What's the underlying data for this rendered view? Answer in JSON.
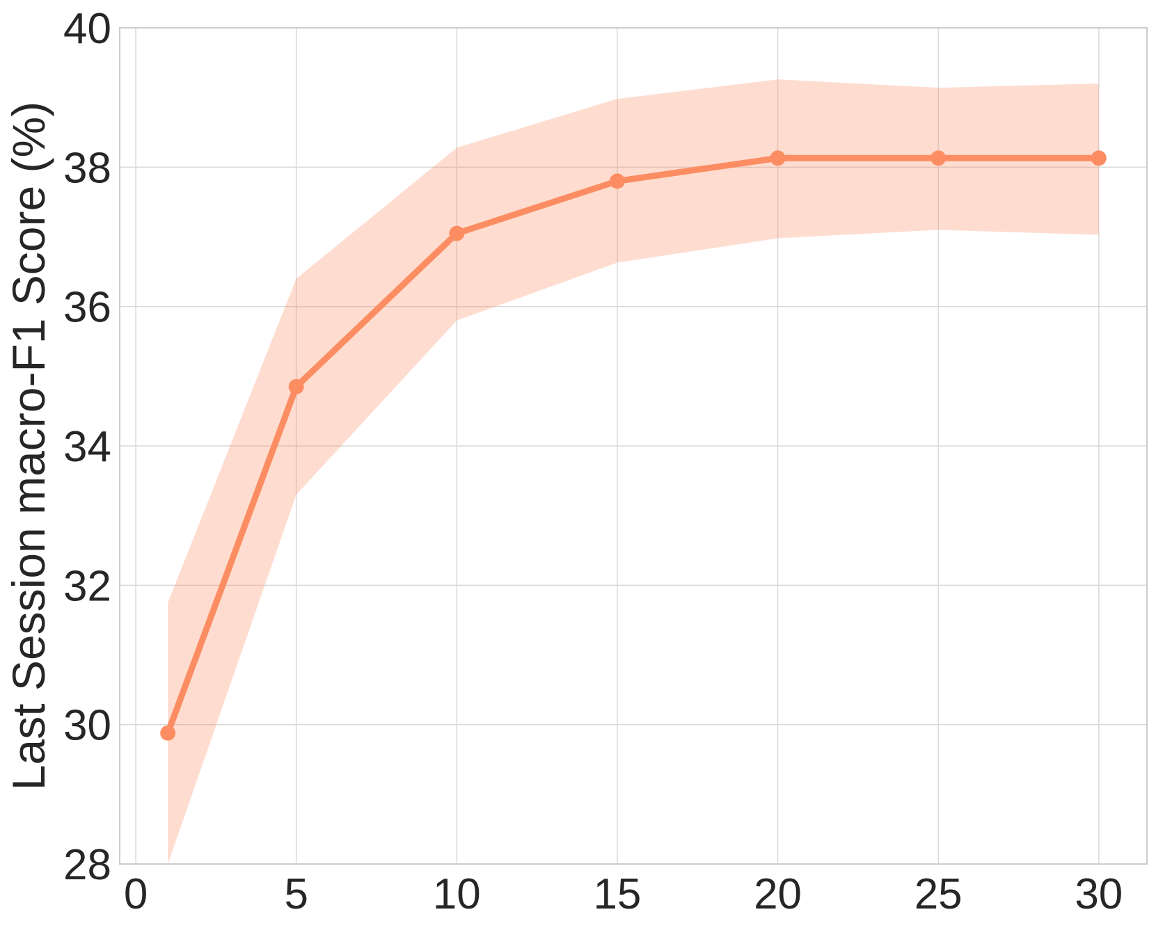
{
  "chart_data": {
    "type": "line",
    "title": "",
    "xlabel": "",
    "ylabel": "Last Session macro-F1 Score (%)",
    "xlim": [
      -0.5,
      31.5
    ],
    "ylim": [
      28,
      40
    ],
    "xticks": [
      0,
      5,
      10,
      15,
      20,
      25,
      30
    ],
    "yticks": [
      28,
      30,
      32,
      34,
      36,
      38,
      40
    ],
    "grid": true,
    "legend": "none",
    "series": [
      {
        "x": [
          1,
          5,
          10,
          15,
          20,
          25,
          30
        ],
        "y": [
          29.88,
          34.85,
          37.05,
          37.8,
          38.13,
          38.13,
          38.13
        ],
        "lower": [
          28.0,
          33.3,
          35.8,
          36.63,
          36.98,
          37.1,
          37.03
        ],
        "upper": [
          31.75,
          36.4,
          38.28,
          38.98,
          39.26,
          39.14,
          39.2
        ],
        "color": "#FC8D62",
        "band_color": "#FC8D62"
      }
    ]
  }
}
